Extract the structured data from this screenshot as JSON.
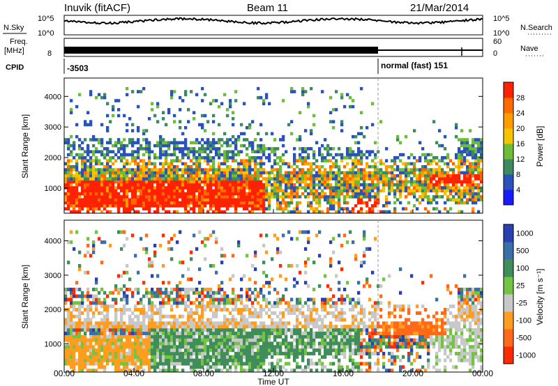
{
  "header": {
    "station": "Inuvik (fitACF)",
    "beam": "Beam 11",
    "date": "21/Mar/2014"
  },
  "strips": {
    "nsky_label": "N.Sky",
    "nsearch_label": "N.Search",
    "noise_ticks": [
      "10^5",
      "10^0"
    ],
    "freq_label_1": "Freq.",
    "freq_label_2": "[MHz]",
    "freq_ticks": [
      "8"
    ],
    "nave_label": "Nave",
    "nave_ticks": [
      "60",
      "0"
    ],
    "cpid_label": "CPID",
    "cpid_1": "-3503",
    "cpid_2": "normal (fast) 151"
  },
  "chart_data": [
    {
      "type": "heatmap",
      "name": "power-panel",
      "ylabel": "Slant Range [km]",
      "xlabel": "",
      "xticks": [
        "00:00",
        "04:00",
        "08:00",
        "12:00",
        "16:00",
        "20:00",
        "00:00"
      ],
      "yticks": [
        1000,
        2000,
        3000,
        4000
      ],
      "ylim": [
        180,
        4600
      ],
      "xlim_hours": [
        0,
        24
      ],
      "colorbar_label": "Power [dB]",
      "colorbar_ticks": [
        4,
        8,
        12,
        16,
        20,
        24,
        28
      ],
      "colorbar_colors": [
        "#1a1aff",
        "#2a52b8",
        "#3c8a5e",
        "#6ebd3a",
        "#f5c400",
        "#ff9c00",
        "#ff6a00",
        "#ff2200"
      ]
    },
    {
      "type": "heatmap",
      "name": "velocity-panel",
      "ylabel": "Slant Range [km]",
      "xlabel": "Time UT",
      "xticks": [
        "00:00",
        "04:00",
        "08:00",
        "12:00",
        "16:00",
        "20:00",
        "00:00"
      ],
      "yticks": [
        1000,
        2000,
        3000,
        4000
      ],
      "ylim": [
        180,
        4600
      ],
      "xlim_hours": [
        0,
        24
      ],
      "colorbar_label": "Velocity [m s⁻¹]",
      "colorbar_ticks": [
        "1000",
        "500",
        "100",
        "25",
        "-25",
        "-100",
        "-500",
        "-1000"
      ],
      "colorbar_colors": [
        "#2a3fb0",
        "#3a6fa8",
        "#3f8e5a",
        "#72c442",
        "#c8c8c8",
        "#ff9d1e",
        "#ff6a1a",
        "#ff2a00"
      ]
    }
  ]
}
